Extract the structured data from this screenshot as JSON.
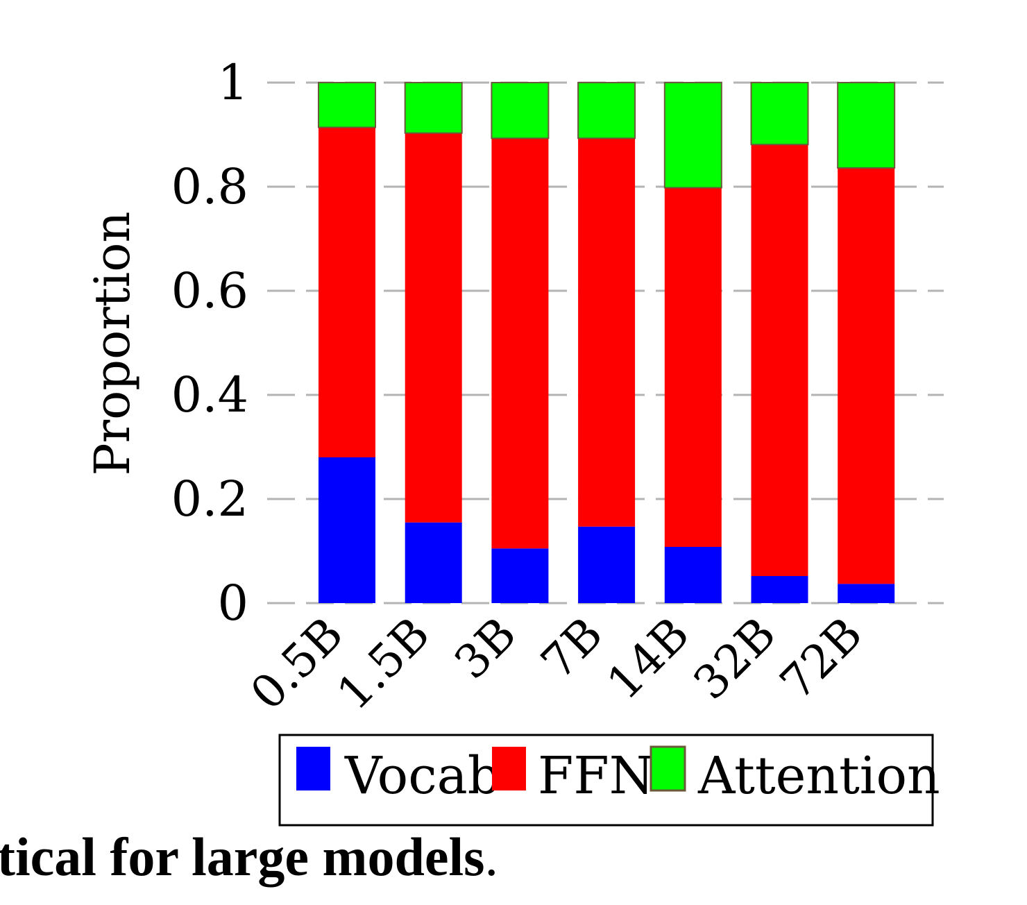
{
  "chart_data": {
    "type": "bar",
    "stacked": true,
    "categories": [
      "0.5B",
      "1.5B",
      "3B",
      "7B",
      "14B",
      "32B",
      "72B"
    ],
    "series": [
      {
        "name": "Vocab",
        "color": "#0000ff",
        "values": [
          0.28,
          0.155,
          0.105,
          0.147,
          0.108,
          0.052,
          0.037
        ]
      },
      {
        "name": "FFN",
        "color": "#ff0000",
        "values": [
          0.634,
          0.748,
          0.788,
          0.746,
          0.69,
          0.829,
          0.799
        ]
      },
      {
        "name": "Attention",
        "color": "#00ff00",
        "values": [
          0.086,
          0.097,
          0.107,
          0.107,
          0.202,
          0.119,
          0.164
        ]
      }
    ],
    "ylabel": "Proportion",
    "ylim": [
      0,
      1
    ],
    "yticks": [
      "0",
      "0.2",
      "0.4",
      "0.6",
      "0.8",
      "1"
    ],
    "grid": true,
    "legend_position": "bottom"
  },
  "caption": {
    "text": "tical for large models",
    "period": "."
  }
}
